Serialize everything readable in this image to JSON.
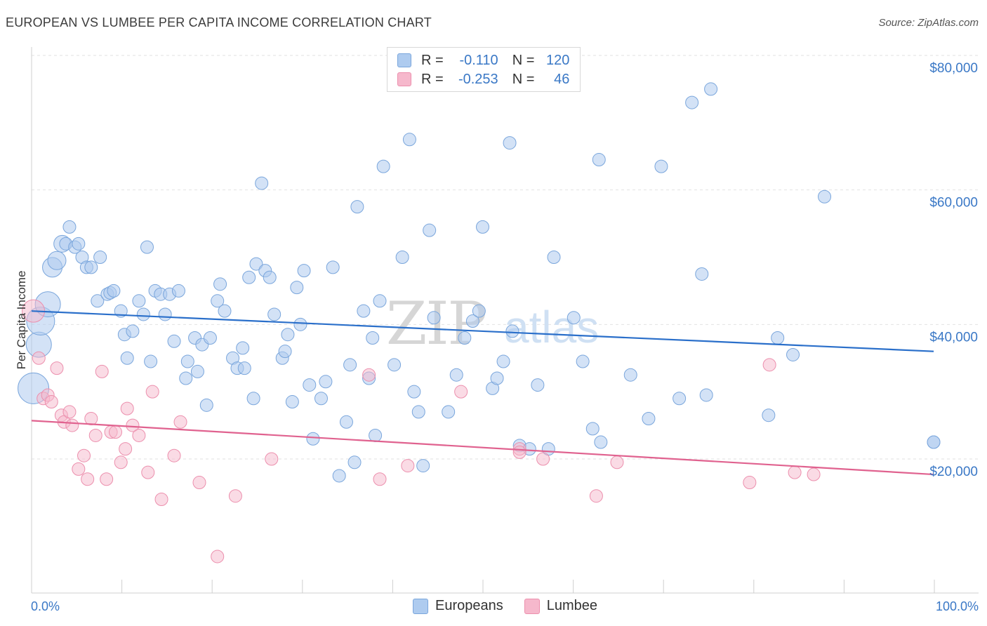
{
  "header": {
    "title": "EUROPEAN VS LUMBEE PER CAPITA INCOME CORRELATION CHART",
    "source": "Source: ZipAtlas.com"
  },
  "legend": {
    "rows": [
      {
        "r_label": "R =",
        "r_value": "-0.110",
        "n_label": "N =",
        "n_value": "120",
        "color": "#aecbef"
      },
      {
        "r_label": "R =",
        "r_value": "-0.253",
        "n_label": "N =",
        "n_value": "46",
        "color": "#f6b8cc"
      }
    ]
  },
  "bottom_legend": {
    "europeans": "Europeans",
    "lumbee": "Lumbee"
  },
  "colors": {
    "europeans_fill": "#aecbef",
    "europeans_stroke": "#7aa6dc",
    "europeans_line": "#2a6fca",
    "lumbee_fill": "#f6b8cc",
    "lumbee_stroke": "#ec8fad",
    "lumbee_line": "#e0628f",
    "axis_label": "#3a78c6"
  },
  "chart_data": {
    "type": "scatter",
    "title": "EUROPEAN VS LUMBEE PER CAPITA INCOME CORRELATION CHART",
    "xlabel": "",
    "ylabel": "Per Capita Income",
    "xlim": [
      0,
      100
    ],
    "ylim": [
      0,
      80000
    ],
    "x_tick_labels": [
      "0.0%",
      "100.0%"
    ],
    "y_ticks": [
      20000,
      40000,
      60000,
      80000
    ],
    "y_tick_labels": [
      "$20,000",
      "$40,000",
      "$60,000",
      "$80,000"
    ],
    "grid": true,
    "legend_position": "top-center",
    "watermark": "ZIPatlas",
    "series": [
      {
        "name": "Europeans",
        "R": -0.11,
        "N": 120,
        "trend": {
          "x": [
            0,
            100
          ],
          "y": [
            42000,
            36000
          ]
        },
        "points": [
          [
            0.2,
            30500
          ],
          [
            0.8,
            37000
          ],
          [
            1.0,
            40500
          ],
          [
            1.8,
            43000
          ],
          [
            2.3,
            48500
          ],
          [
            2.8,
            49500
          ],
          [
            3.4,
            52000
          ],
          [
            3.8,
            52000
          ],
          [
            4.2,
            54500
          ],
          [
            4.8,
            51500
          ],
          [
            5.2,
            52000
          ],
          [
            5.6,
            50000
          ],
          [
            6.1,
            48500
          ],
          [
            6.6,
            48500
          ],
          [
            7.6,
            50000
          ],
          [
            7.3,
            43500
          ],
          [
            8.4,
            44500
          ],
          [
            8.7,
            44700
          ],
          [
            9.1,
            45000
          ],
          [
            9.9,
            42000
          ],
          [
            10.3,
            38500
          ],
          [
            10.6,
            35000
          ],
          [
            11.2,
            39000
          ],
          [
            11.9,
            43500
          ],
          [
            12.4,
            41500
          ],
          [
            12.8,
            51500
          ],
          [
            13.2,
            34500
          ],
          [
            13.7,
            45000
          ],
          [
            14.3,
            44500
          ],
          [
            14.8,
            41500
          ],
          [
            15.3,
            44500
          ],
          [
            15.8,
            37500
          ],
          [
            16.3,
            45000
          ],
          [
            17.1,
            32000
          ],
          [
            17.3,
            34500
          ],
          [
            18.1,
            38000
          ],
          [
            18.4,
            33000
          ],
          [
            18.9,
            37000
          ],
          [
            19.4,
            28000
          ],
          [
            19.8,
            38000
          ],
          [
            20.6,
            43500
          ],
          [
            20.9,
            46000
          ],
          [
            21.4,
            42000
          ],
          [
            22.3,
            35000
          ],
          [
            22.8,
            33500
          ],
          [
            23.4,
            36500
          ],
          [
            23.6,
            33500
          ],
          [
            24.1,
            47000
          ],
          [
            24.6,
            29000
          ],
          [
            24.9,
            49000
          ],
          [
            25.5,
            61000
          ],
          [
            25.9,
            48000
          ],
          [
            26.4,
            47000
          ],
          [
            26.9,
            41500
          ],
          [
            27.8,
            35000
          ],
          [
            28.1,
            36000
          ],
          [
            28.4,
            38500
          ],
          [
            28.9,
            28500
          ],
          [
            29.4,
            45500
          ],
          [
            29.8,
            40000
          ],
          [
            30.2,
            48000
          ],
          [
            30.8,
            31000
          ],
          [
            31.2,
            23000
          ],
          [
            32.1,
            29000
          ],
          [
            32.6,
            31500
          ],
          [
            33.4,
            48500
          ],
          [
            34.1,
            17500
          ],
          [
            34.9,
            25500
          ],
          [
            35.3,
            34000
          ],
          [
            35.8,
            19500
          ],
          [
            36.1,
            57500
          ],
          [
            36.8,
            42000
          ],
          [
            37.4,
            32000
          ],
          [
            37.8,
            38000
          ],
          [
            38.1,
            23500
          ],
          [
            38.6,
            43500
          ],
          [
            39.0,
            63500
          ],
          [
            40.2,
            34000
          ],
          [
            41.1,
            50000
          ],
          [
            41.9,
            67500
          ],
          [
            42.4,
            30000
          ],
          [
            42.9,
            27000
          ],
          [
            43.4,
            19000
          ],
          [
            44.1,
            54000
          ],
          [
            44.6,
            41000
          ],
          [
            46.2,
            27000
          ],
          [
            47.1,
            32500
          ],
          [
            48.0,
            38000
          ],
          [
            48.9,
            40500
          ],
          [
            49.6,
            42000
          ],
          [
            50.0,
            54500
          ],
          [
            51.1,
            30500
          ],
          [
            51.6,
            32000
          ],
          [
            52.3,
            34500
          ],
          [
            53.0,
            67000
          ],
          [
            53.3,
            39000
          ],
          [
            54.1,
            22000
          ],
          [
            55.2,
            21500
          ],
          [
            56.1,
            31000
          ],
          [
            57.3,
            21500
          ],
          [
            57.9,
            50000
          ],
          [
            60.1,
            41000
          ],
          [
            61.1,
            34500
          ],
          [
            62.2,
            24500
          ],
          [
            62.9,
            64500
          ],
          [
            63.1,
            22500
          ],
          [
            66.4,
            32500
          ],
          [
            68.4,
            26000
          ],
          [
            69.8,
            63500
          ],
          [
            71.8,
            29000
          ],
          [
            73.2,
            73000
          ],
          [
            74.3,
            47500
          ],
          [
            74.8,
            29500
          ],
          [
            75.3,
            75000
          ],
          [
            81.7,
            26500
          ],
          [
            82.7,
            38000
          ],
          [
            84.4,
            35500
          ],
          [
            87.9,
            59000
          ],
          [
            100.0,
            22500
          ],
          [
            100.0,
            22500
          ]
        ]
      },
      {
        "name": "Lumbee",
        "R": -0.253,
        "N": 46,
        "trend": {
          "x": [
            0,
            100
          ],
          "y": [
            25700,
            17700
          ]
        },
        "points": [
          [
            0.2,
            42000
          ],
          [
            0.8,
            35000
          ],
          [
            1.3,
            29000
          ],
          [
            1.8,
            29500
          ],
          [
            2.2,
            28500
          ],
          [
            2.8,
            33500
          ],
          [
            3.3,
            26500
          ],
          [
            3.6,
            25500
          ],
          [
            4.2,
            27000
          ],
          [
            4.5,
            25000
          ],
          [
            5.2,
            18500
          ],
          [
            5.8,
            20500
          ],
          [
            6.2,
            17000
          ],
          [
            6.6,
            26000
          ],
          [
            7.1,
            23500
          ],
          [
            7.8,
            33000
          ],
          [
            8.3,
            17000
          ],
          [
            8.8,
            24000
          ],
          [
            9.3,
            24000
          ],
          [
            9.9,
            19500
          ],
          [
            10.4,
            21500
          ],
          [
            10.6,
            27500
          ],
          [
            11.2,
            25000
          ],
          [
            11.9,
            23500
          ],
          [
            12.9,
            18000
          ],
          [
            13.4,
            30000
          ],
          [
            14.4,
            14000
          ],
          [
            15.8,
            20500
          ],
          [
            16.5,
            25500
          ],
          [
            18.6,
            16500
          ],
          [
            20.6,
            5500
          ],
          [
            22.6,
            14500
          ],
          [
            26.6,
            20000
          ],
          [
            37.4,
            32500
          ],
          [
            38.6,
            17000
          ],
          [
            41.7,
            19000
          ],
          [
            47.6,
            30000
          ],
          [
            54.1,
            21500
          ],
          [
            54.1,
            21000
          ],
          [
            56.7,
            20000
          ],
          [
            62.6,
            14500
          ],
          [
            64.9,
            19500
          ],
          [
            79.6,
            16500
          ],
          [
            81.8,
            34000
          ],
          [
            84.6,
            18000
          ],
          [
            86.7,
            17700
          ]
        ]
      }
    ]
  }
}
